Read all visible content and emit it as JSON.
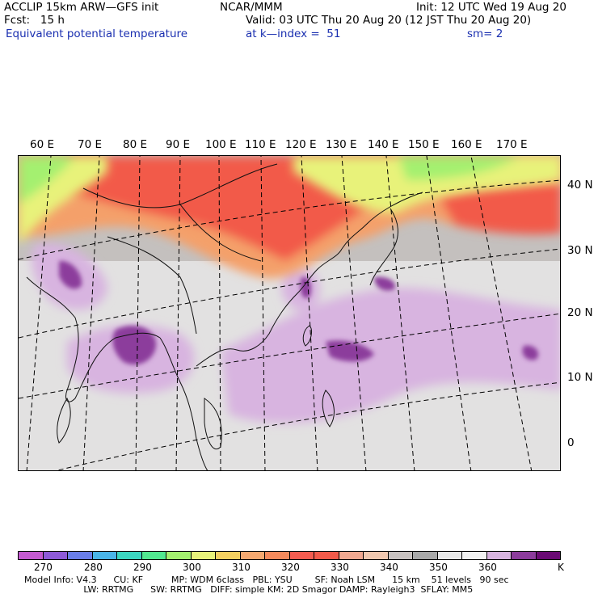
{
  "header": {
    "left_line1": "ACCLIP 15km ARW—GFS init",
    "left_line2": "Fcst:   15 h",
    "left_line3": "Equivalent potential temperature",
    "center_line1": "NCAR/MMM",
    "center_line2": "Valid: 03 UTC Thu 20 Aug 20 (12 JST Thu 20 Aug 20)",
    "center_line3_a": "at k—index =  51",
    "center_line3_b": "sm= 2",
    "right_line1": "Init: 12 UTC Wed 19 Aug 20"
  },
  "longitude_labels": [
    "60 E",
    "70 E",
    "80 E",
    "90 E",
    "100 E",
    "110 E",
    "120 E",
    "130 E",
    "140 E",
    "150 E",
    "160 E",
    "170 E"
  ],
  "latitude_labels": [
    "40 N",
    "30 N",
    "20 N",
    "10 N",
    "0"
  ],
  "colorbar": {
    "unit": "K",
    "tick_labels": [
      "270",
      "280",
      "290",
      "300",
      "310",
      "320",
      "330",
      "340",
      "350",
      "360"
    ],
    "colors": [
      "#c45ad0",
      "#8e5ad8",
      "#6a7ee8",
      "#4ab4e8",
      "#3cd6c0",
      "#52e890",
      "#a4f070",
      "#e8f27a",
      "#f4d060",
      "#f4a870",
      "#f48a5c",
      "#f45c50",
      "#f25a4a",
      "#f0a890",
      "#f0c8b0",
      "#c8c2c0",
      "#a8a8a8",
      "#e8e8e8",
      "#f2f2f2",
      "#d8b4e0",
      "#8c3c9c",
      "#6a0a74"
    ]
  },
  "footer": {
    "line1": "Model Info: V4.3      CU: KF          MP: WDM 6class   PBL: YSU        SF: Noah LSM      15 km    51 levels   90 sec",
    "line2": "                     LW: RRTMG      SW: RRTMG   DIFF: simple KM: 2D Smagor DAMP: Rayleigh3  SFLAY: MM5"
  }
}
